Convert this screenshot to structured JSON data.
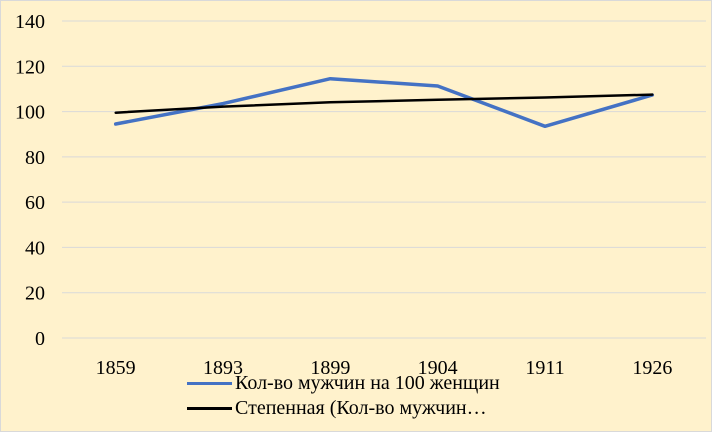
{
  "chart_data": {
    "type": "line",
    "categories": [
      "1859",
      "1893",
      "1899",
      "1904",
      "1911",
      "1926"
    ],
    "ylim": [
      0,
      140
    ],
    "yticks": [
      "0",
      "20",
      "40",
      "60",
      "80",
      "100",
      "120",
      "140"
    ],
    "grid": true,
    "legend_position": "bottom",
    "series": [
      {
        "name": "Кол-во мужчин на 100 женщин",
        "values": [
          94.5,
          103.5,
          114.5,
          111.3,
          93.5,
          107.3
        ],
        "color": "#4472c4"
      },
      {
        "name": "Степенная (Кол-во мужчин…",
        "values": [
          99.5,
          102.2,
          104.1,
          105.2,
          106.2,
          107.5
        ],
        "color": "#000000"
      }
    ]
  }
}
